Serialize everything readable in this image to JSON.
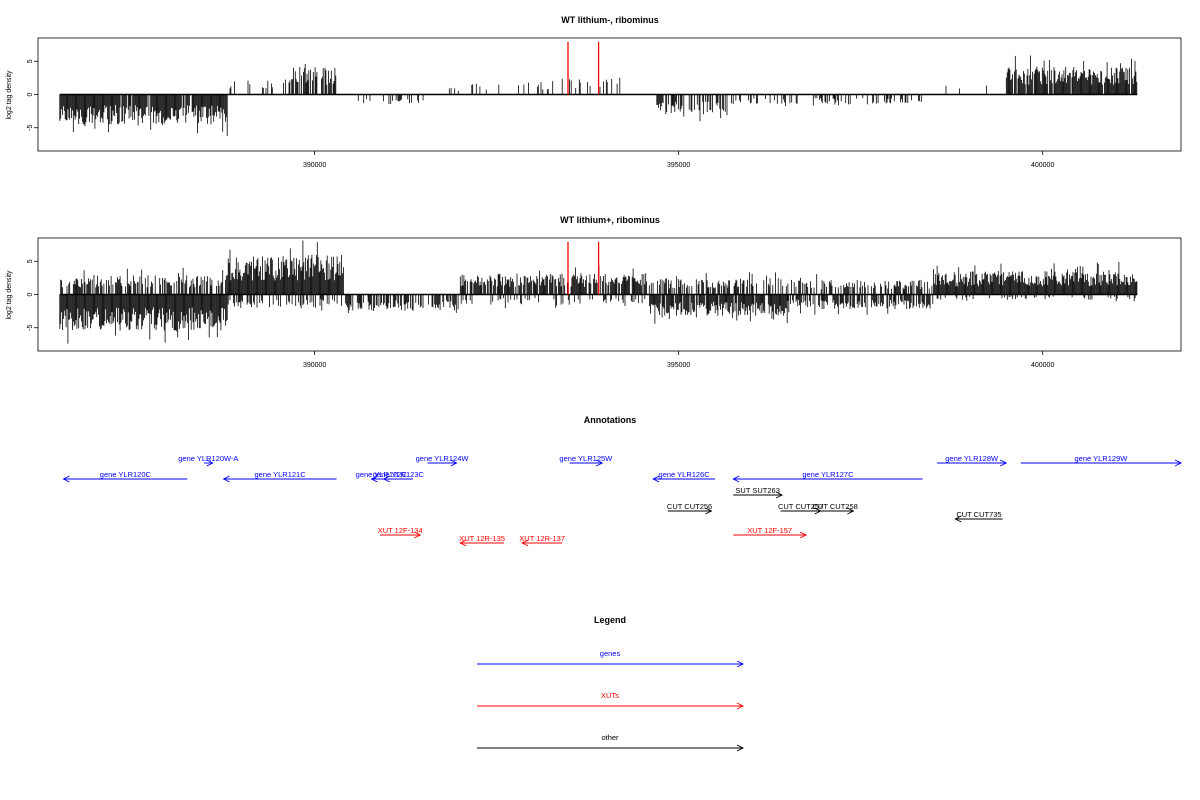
{
  "chart_data": [
    {
      "type": "bar",
      "title": "WT lithium-, ribominus",
      "ylabel": "log2 tag density",
      "xlabel": "",
      "xlim": [
        386200,
        401900
      ],
      "ylim": [
        -8.5,
        8.5
      ],
      "xticks": [
        390000,
        395000,
        400000
      ],
      "yticks": [
        -5,
        0,
        5
      ],
      "signal_regions": [
        {
          "start": 386500,
          "end": 388800,
          "sign": -1,
          "amp": 4.5,
          "dens": 0.95
        },
        {
          "start": 388800,
          "end": 389500,
          "sign": 1,
          "amp": 2.2,
          "dens": 0.25
        },
        {
          "start": 389500,
          "end": 390300,
          "sign": 1,
          "amp": 4.2,
          "dens": 0.6
        },
        {
          "start": 390600,
          "end": 391600,
          "sign": -1,
          "amp": 1.5,
          "dens": 0.25
        },
        {
          "start": 391800,
          "end": 392600,
          "sign": 1,
          "amp": 1.5,
          "dens": 0.2
        },
        {
          "start": 392800,
          "end": 393300,
          "sign": 1,
          "amp": 2.2,
          "dens": 0.3
        },
        {
          "start": 393400,
          "end": 394200,
          "sign": 1,
          "amp": 2.5,
          "dens": 0.25
        },
        {
          "start": 394700,
          "end": 395700,
          "sign": -1,
          "amp": 3.0,
          "dens": 0.55
        },
        {
          "start": 395700,
          "end": 398400,
          "sign": -1,
          "amp": 1.5,
          "dens": 0.3
        },
        {
          "start": 398400,
          "end": 399500,
          "sign": 1,
          "amp": 1.5,
          "dens": 0.1
        },
        {
          "start": 399500,
          "end": 401300,
          "sign": 1,
          "amp": 4.2,
          "dens": 0.95
        }
      ],
      "highlight_x": [
        393480,
        393900
      ],
      "highlight_color": "#ff0000",
      "seed": 17
    },
    {
      "type": "bar",
      "title": "WT lithium+, ribominus",
      "ylabel": "log2 tag density",
      "xlabel": "",
      "xlim": [
        386200,
        401900
      ],
      "ylim": [
        -8.5,
        8.5
      ],
      "xticks": [
        390000,
        395000,
        400000
      ],
      "yticks": [
        -5,
        0,
        5
      ],
      "signal_regions": [
        {
          "start": 386500,
          "end": 388800,
          "sign": -1,
          "amp": 5.5,
          "dens": 1.0
        },
        {
          "start": 386500,
          "end": 388800,
          "sign": 1,
          "amp": 3.0,
          "dens": 0.6
        },
        {
          "start": 388800,
          "end": 390400,
          "sign": 1,
          "amp": 6.0,
          "dens": 1.0
        },
        {
          "start": 388800,
          "end": 390400,
          "sign": -1,
          "amp": 2.0,
          "dens": 0.4
        },
        {
          "start": 390400,
          "end": 392000,
          "sign": -1,
          "amp": 2.5,
          "dens": 0.6
        },
        {
          "start": 392000,
          "end": 394600,
          "sign": 1,
          "amp": 3.2,
          "dens": 0.8
        },
        {
          "start": 392000,
          "end": 394600,
          "sign": -1,
          "amp": 1.5,
          "dens": 0.3
        },
        {
          "start": 394600,
          "end": 396500,
          "sign": -1,
          "amp": 3.2,
          "dens": 0.9
        },
        {
          "start": 394600,
          "end": 396500,
          "sign": 1,
          "amp": 2.5,
          "dens": 0.6
        },
        {
          "start": 396500,
          "end": 398500,
          "sign": -1,
          "amp": 2.2,
          "dens": 0.7
        },
        {
          "start": 396500,
          "end": 398500,
          "sign": 1,
          "amp": 2.2,
          "dens": 0.5
        },
        {
          "start": 398500,
          "end": 401300,
          "sign": 1,
          "amp": 3.5,
          "dens": 1.0
        },
        {
          "start": 398500,
          "end": 401300,
          "sign": -1,
          "amp": 0.8,
          "dens": 0.2
        }
      ],
      "highlight_x": [
        393480,
        393900
      ],
      "highlight_color": "#ff0000",
      "seed": 29
    }
  ],
  "annotations": {
    "title": "Annotations",
    "colors": {
      "gene": "#0000ff",
      "xut": "#ff0000",
      "other": "#000000"
    },
    "features": [
      {
        "label": "gene YLR120C",
        "kind": "gene",
        "start": 386550,
        "end": 388250,
        "strand": "-",
        "row": 1
      },
      {
        "label": "gene YLR120W-A",
        "kind": "gene",
        "start": 388480,
        "end": 388600,
        "strand": "+",
        "row": 0
      },
      {
        "label": "gene YLR121C",
        "kind": "gene",
        "start": 388750,
        "end": 390300,
        "strand": "-",
        "row": 1
      },
      {
        "label": "gene YLR122C",
        "kind": "gene",
        "start": 390780,
        "end": 391050,
        "strand": "-",
        "row": 1
      },
      {
        "label": "gene YLR123C",
        "kind": "gene",
        "start": 390950,
        "end": 391350,
        "strand": "-",
        "row": 1
      },
      {
        "label": "gene YLR124W",
        "kind": "gene",
        "start": 391550,
        "end": 391950,
        "strand": "+",
        "row": 0
      },
      {
        "label": "gene YLR125W",
        "kind": "gene",
        "start": 393500,
        "end": 393950,
        "strand": "+",
        "row": 0
      },
      {
        "label": "gene YLR126C",
        "kind": "gene",
        "start": 394650,
        "end": 395500,
        "strand": "-",
        "row": 1
      },
      {
        "label": "gene YLR127C",
        "kind": "gene",
        "start": 395750,
        "end": 398350,
        "strand": "-",
        "row": 1
      },
      {
        "label": "gene YLR128W",
        "kind": "gene",
        "start": 398550,
        "end": 399500,
        "strand": "+",
        "row": 0
      },
      {
        "label": "gene YLR129W",
        "kind": "gene",
        "start": 399700,
        "end": 401900,
        "strand": "+",
        "row": 0
      },
      {
        "label": "SUT SUT263",
        "kind": "other",
        "start": 395750,
        "end": 396420,
        "strand": "+",
        "row": 2
      },
      {
        "label": "CUT CUT256",
        "kind": "other",
        "start": 394850,
        "end": 395450,
        "strand": "+",
        "row": 3
      },
      {
        "label": "CUT CUT257",
        "kind": "other",
        "start": 396400,
        "end": 396950,
        "strand": "+",
        "row": 3
      },
      {
        "label": "CUT CUT258",
        "kind": "other",
        "start": 396900,
        "end": 397400,
        "strand": "+",
        "row": 3
      },
      {
        "label": "CUT CUT735",
        "kind": "other",
        "start": 398800,
        "end": 399450,
        "strand": "-",
        "row": 3.5
      },
      {
        "label": "XUT 12F-134",
        "kind": "xut",
        "start": 390900,
        "end": 391450,
        "strand": "+",
        "row": 4.5
      },
      {
        "label": "XUT 12R-135",
        "kind": "xut",
        "start": 392000,
        "end": 392600,
        "strand": "-",
        "row": 5
      },
      {
        "label": "XUT 12R-137",
        "kind": "xut",
        "start": 392850,
        "end": 393400,
        "strand": "-",
        "row": 5
      },
      {
        "label": "XUT 12F-157",
        "kind": "xut",
        "start": 395750,
        "end": 396750,
        "strand": "+",
        "row": 4.5
      }
    ]
  },
  "legend": {
    "title": "Legend",
    "items": [
      {
        "label": "genes",
        "color": "#0000ff"
      },
      {
        "label": "XUTs",
        "color": "#ff0000"
      },
      {
        "label": "other",
        "color": "#000000"
      }
    ]
  }
}
